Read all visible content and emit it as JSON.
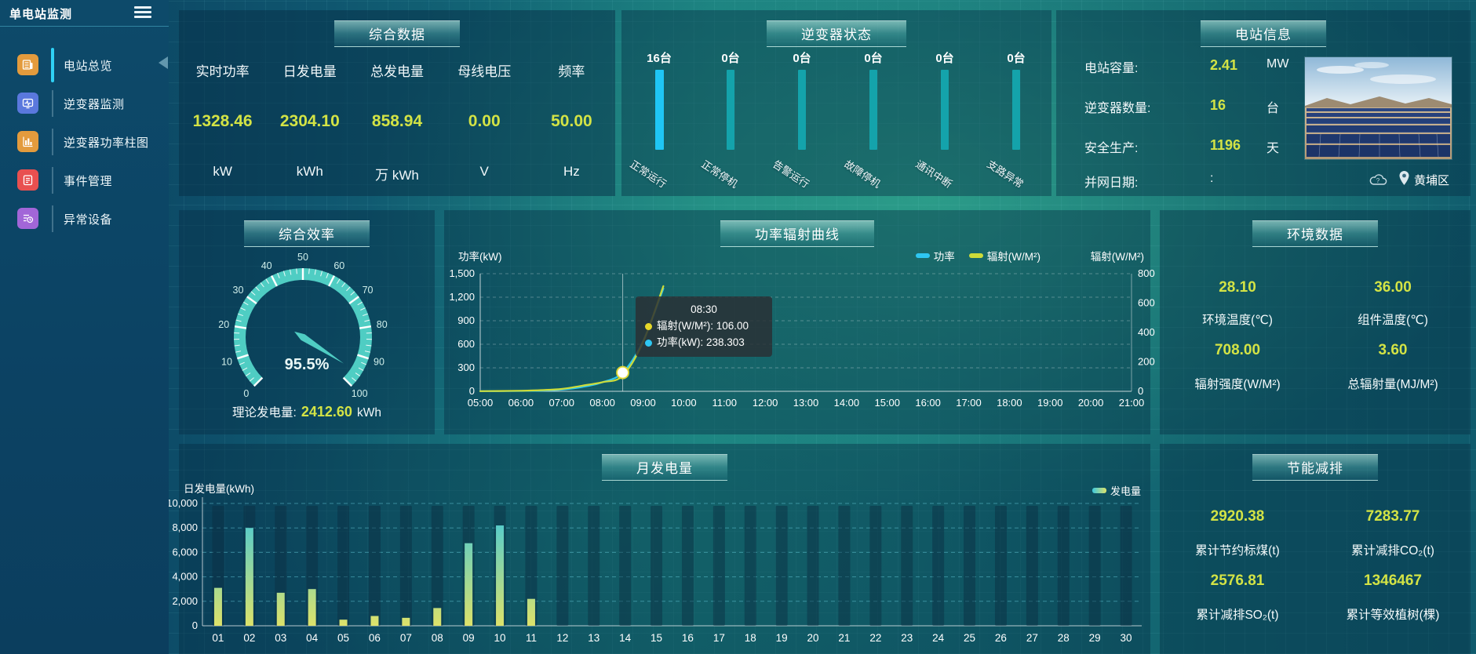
{
  "app": {
    "title": "单电站监测"
  },
  "sidebar": {
    "items": [
      {
        "label": "电站总览",
        "icon": "overview-icon",
        "color": "#e39b3d",
        "active": true
      },
      {
        "label": "逆变器监测",
        "icon": "inverter-monitor-icon",
        "color": "#5a78dd",
        "active": false
      },
      {
        "label": "逆变器功率柱图",
        "icon": "inverter-power-bars-icon",
        "color": "#e39b3d",
        "active": false
      },
      {
        "label": "事件管理",
        "icon": "event-management-icon",
        "color": "#e85050",
        "active": false
      },
      {
        "label": "异常设备",
        "icon": "abnormal-devices-icon",
        "color": "#a266d8",
        "active": false
      }
    ]
  },
  "panels": {
    "summary": {
      "title": "综合数据",
      "metrics": [
        {
          "label": "实时功率",
          "value": "1328.46",
          "unit": "kW"
        },
        {
          "label": "日发电量",
          "value": "2304.10",
          "unit": "kWh"
        },
        {
          "label": "总发电量",
          "value": "858.94",
          "unit": "万 kWh"
        },
        {
          "label": "母线电压",
          "value": "0.00",
          "unit": "V"
        },
        {
          "label": "频率",
          "value": "50.00",
          "unit": "Hz"
        }
      ]
    },
    "inverter_status": {
      "title": "逆变器状态",
      "bars": [
        {
          "count": "16台",
          "label": "正常运行",
          "color": "#1fc6f5"
        },
        {
          "count": "0台",
          "label": "正常停机",
          "color": "#14a3ab"
        },
        {
          "count": "0台",
          "label": "告警运行",
          "color": "#14a3ab"
        },
        {
          "count": "0台",
          "label": "故障停机",
          "color": "#14a3ab"
        },
        {
          "count": "0台",
          "label": "通讯中断",
          "color": "#14a3ab"
        },
        {
          "count": "0台",
          "label": "支路异常",
          "color": "#14a3ab"
        }
      ]
    },
    "station_info": {
      "title": "电站信息",
      "rows": [
        {
          "label": "电站容量:",
          "value": "2.41",
          "unit": "MW"
        },
        {
          "label": "逆变器数量:",
          "value": "16",
          "unit": "台"
        },
        {
          "label": "安全生产:",
          "value": "1196",
          "unit": "天"
        },
        {
          "label": "并网日期:",
          "value": ":",
          "unit": ""
        }
      ],
      "location": "黄埔区"
    },
    "efficiency": {
      "title": "综合效率",
      "footer_label": "理论发电量:",
      "footer_value": "2412.60",
      "footer_unit": "kWh"
    },
    "power_curve": {
      "title": "功率辐射曲线",
      "y_left_name": "功率(kW)",
      "y_right_name": "辐射(W/M²)",
      "legend": [
        "功率",
        "辐射(W/M²)"
      ]
    },
    "environment": {
      "title": "环境数据",
      "metrics": [
        {
          "value": "28.10",
          "label": "环境温度(℃)"
        },
        {
          "value": "36.00",
          "label": "组件温度(℃)"
        },
        {
          "value": "708.00",
          "label": "辐射强度(W/M²)"
        },
        {
          "value": "3.60",
          "label": "总辐射量(MJ/M²)"
        }
      ]
    },
    "monthly": {
      "title": "月发电量",
      "y_name": "日发电量(kWh)",
      "legend": "发电量"
    },
    "savings": {
      "title": "节能减排",
      "metrics": [
        {
          "value": "2920.38",
          "label": "累计节约标煤(t)"
        },
        {
          "value": "7283.77",
          "label": "累计减排CO₂(t)"
        },
        {
          "value": "2576.81",
          "label": "累计减排SO₂(t)"
        },
        {
          "value": "1346467",
          "label": "累计等效植树(棵)"
        }
      ]
    }
  },
  "colors": {
    "value_accent": "#d3e345",
    "power_series": "#2ec7f2",
    "radiation_series": "#cddc39",
    "active_bar": "#1fc6f5",
    "idle_bar": "#14a3ab",
    "gauge": "#4fcdc3"
  },
  "chart_data": [
    {
      "id": "efficiency-gauge",
      "type": "gauge",
      "min": 0,
      "max": 100,
      "value": 95.5,
      "value_label": "95.5%",
      "tick_labels": [
        "0",
        "10",
        "20",
        "30",
        "40",
        "50",
        "60",
        "70",
        "80",
        "90",
        "100"
      ],
      "color": "#4fcdc3"
    },
    {
      "id": "power-radiation",
      "type": "line",
      "x_tick_labels": [
        "05:00",
        "06:00",
        "07:00",
        "08:00",
        "09:00",
        "10:00",
        "11:00",
        "12:00",
        "13:00",
        "14:00",
        "15:00",
        "16:00",
        "17:00",
        "18:00",
        "19:00",
        "20:00",
        "21:00"
      ],
      "x_range_hours": [
        5,
        21
      ],
      "y_left": {
        "name": "功率(kW)",
        "min": 0,
        "max": 1500,
        "ticks": [
          "0",
          "300",
          "600",
          "900",
          "1,200",
          "1,500"
        ]
      },
      "y_right": {
        "name": "辐射(W/M²)",
        "min": 0,
        "max": 800,
        "ticks": [
          "0",
          "200",
          "400",
          "600",
          "800"
        ]
      },
      "series": [
        {
          "name": "功率",
          "axis": "left",
          "color": "#2ec7f2",
          "points": [
            [
              5,
              2
            ],
            [
              5.5,
              3
            ],
            [
              6,
              5
            ],
            [
              6.5,
              9
            ],
            [
              7,
              22
            ],
            [
              7.5,
              55
            ],
            [
              8,
              115
            ],
            [
              8.5,
              238.303
            ],
            [
              9,
              640
            ],
            [
              9.5,
              1310
            ]
          ]
        },
        {
          "name": "辐射(W/M²)",
          "axis": "right",
          "color": "#cddc39",
          "points": [
            [
              5,
              1
            ],
            [
              5.5,
              2
            ],
            [
              6,
              4
            ],
            [
              6.5,
              8
            ],
            [
              7,
              16
            ],
            [
              7.5,
              38
            ],
            [
              8,
              62
            ],
            [
              8.5,
              106
            ],
            [
              9,
              335
            ],
            [
              9.5,
              715
            ]
          ]
        }
      ],
      "tooltip": {
        "time": "08:30",
        "x_hour": 8.5,
        "marker_value": 238.303,
        "rows": [
          {
            "color": "#e6d829",
            "label": "辐射(W/M²)",
            "value": "106.00"
          },
          {
            "color": "#2ec7f2",
            "label": "功率(kW)",
            "value": "238.303"
          }
        ]
      }
    },
    {
      "id": "monthly-generation",
      "type": "bar",
      "categories": [
        "01",
        "02",
        "03",
        "04",
        "05",
        "06",
        "07",
        "08",
        "09",
        "10",
        "11",
        "12",
        "13",
        "14",
        "15",
        "16",
        "17",
        "18",
        "19",
        "20",
        "21",
        "22",
        "23",
        "24",
        "25",
        "26",
        "27",
        "28",
        "29",
        "30"
      ],
      "values": [
        3100,
        8000,
        2700,
        3000,
        500,
        800,
        650,
        1450,
        6750,
        8200,
        2200,
        0,
        0,
        0,
        0,
        0,
        0,
        0,
        0,
        0,
        0,
        0,
        0,
        0,
        0,
        0,
        0,
        0,
        0,
        0
      ],
      "ylim": [
        0,
        10000
      ],
      "yticks": [
        "0",
        "2,000",
        "4,000",
        "6,000",
        "8,000",
        "10,000"
      ],
      "bar_gradient": [
        "#3cc8de",
        "#dde26a"
      ],
      "shadow_color": "rgba(10,45,65,0.45)"
    }
  ]
}
